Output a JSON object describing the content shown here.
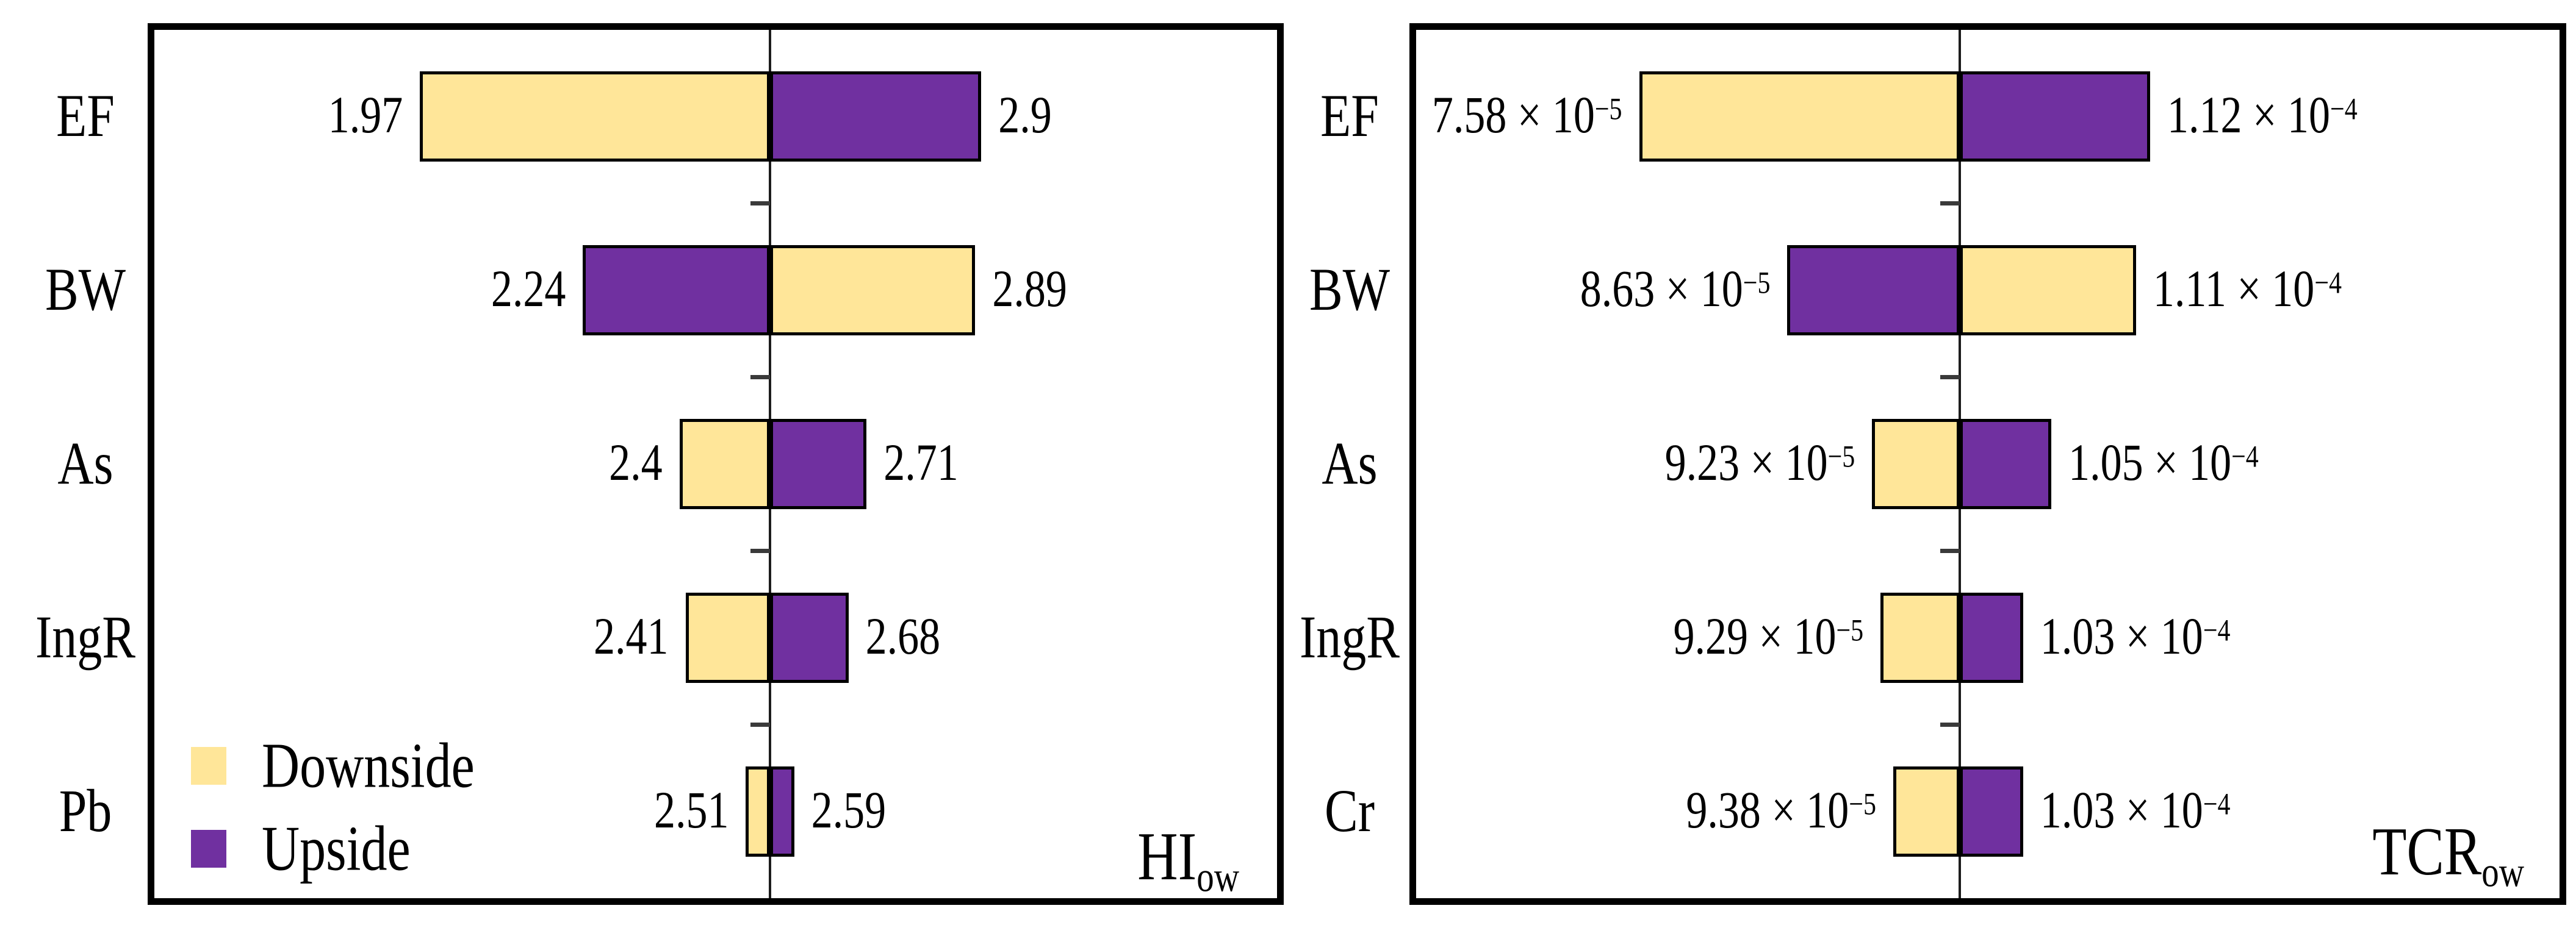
{
  "figure": {
    "background": "#ffffff",
    "description": "Two tornado sensitivity charts side by side"
  },
  "colors": {
    "downside": "#FFE699",
    "upside": "#7030A0",
    "bar_border": "#000000",
    "axis": "#1c1c1c",
    "panel_border": "#000000"
  },
  "legend": {
    "position": "bottom-left-inside-left-panel",
    "items": [
      {
        "label": "Downside",
        "color": "#FFE699"
      },
      {
        "label": "Upside",
        "color": "#7030A0"
      }
    ]
  },
  "chart_data": [
    {
      "type": "bar",
      "subtype": "tornado",
      "panel": "left",
      "corner_label": {
        "main": "HI",
        "sub": "ow"
      },
      "categories": [
        "EF",
        "BW",
        "As",
        "IngR",
        "Pb"
      ],
      "axis_value": 2.55,
      "domain": [
        1.53,
        3.39
      ],
      "grid": false,
      "ticks_between_categories": true,
      "rows": [
        {
          "category": "EF",
          "low": 1.97,
          "high": 2.9,
          "low_label": {
            "text": "1.97"
          },
          "high_label": {
            "text": "2.9"
          },
          "left_segment": "downside"
        },
        {
          "category": "BW",
          "low": 2.24,
          "high": 2.89,
          "low_label": {
            "text": "2.24"
          },
          "high_label": {
            "text": "2.89"
          },
          "left_segment": "upside"
        },
        {
          "category": "As",
          "low": 2.4,
          "high": 2.71,
          "low_label": {
            "text": "2.4"
          },
          "high_label": {
            "text": "2.71"
          },
          "left_segment": "downside"
        },
        {
          "category": "IngR",
          "low": 2.41,
          "high": 2.68,
          "low_label": {
            "text": "2.41"
          },
          "high_label": {
            "text": "2.68"
          },
          "left_segment": "downside"
        },
        {
          "category": "Pb",
          "low": 2.51,
          "high": 2.59,
          "low_label": {
            "text": "2.51"
          },
          "high_label": {
            "text": "2.59"
          },
          "left_segment": "downside"
        }
      ]
    },
    {
      "type": "bar",
      "subtype": "tornado",
      "panel": "right",
      "corner_label": {
        "main": "TCR",
        "sub": "ow"
      },
      "categories": [
        "EF",
        "BW",
        "As",
        "IngR",
        "Cr"
      ],
      "axis_value": 9.85e-05,
      "domain": [
        6e-05,
        0.000141
      ],
      "grid": false,
      "ticks_between_categories": true,
      "rows": [
        {
          "category": "EF",
          "low": 7.58e-05,
          "high": 0.000112,
          "low_label": {
            "text": "7.58 × 10",
            "sup": "−5"
          },
          "high_label": {
            "text": "1.12 × 10",
            "sup": "−4"
          },
          "left_segment": "downside"
        },
        {
          "category": "BW",
          "low": 8.63e-05,
          "high": 0.000111,
          "low_label": {
            "text": "8.63 × 10",
            "sup": "−5"
          },
          "high_label": {
            "text": "1.11 × 10",
            "sup": "−4"
          },
          "left_segment": "upside"
        },
        {
          "category": "As",
          "low": 9.23e-05,
          "high": 0.000105,
          "low_label": {
            "text": "9.23 × 10",
            "sup": "−5"
          },
          "high_label": {
            "text": "1.05 × 10",
            "sup": "−4"
          },
          "left_segment": "downside"
        },
        {
          "category": "IngR",
          "low": 9.29e-05,
          "high": 0.000103,
          "low_label": {
            "text": "9.29 × 10",
            "sup": "−5"
          },
          "high_label": {
            "text": "1.03 × 10",
            "sup": "−4"
          },
          "left_segment": "downside"
        },
        {
          "category": "Cr",
          "low": 9.38e-05,
          "high": 0.000103,
          "low_label": {
            "text": "9.38 × 10",
            "sup": "−5"
          },
          "high_label": {
            "text": "1.03 × 10",
            "sup": "−4"
          },
          "left_segment": "downside"
        }
      ]
    }
  ]
}
